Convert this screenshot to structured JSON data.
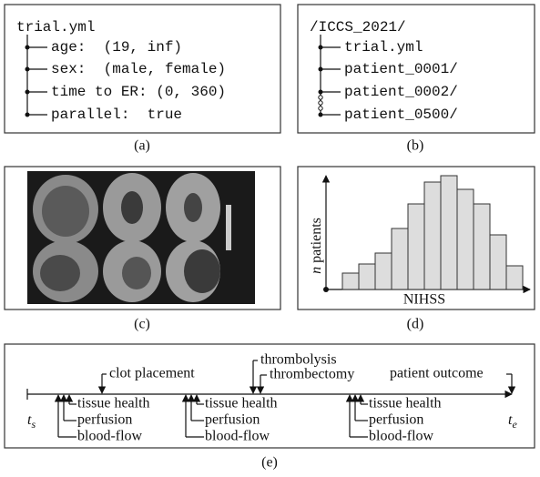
{
  "panel_a": {
    "root": "trial.yml",
    "items": [
      "age:  (19, inf)",
      "sex:  (male, female)",
      "time to ER: (0, 360)",
      "parallel:  true"
    ],
    "caption": "(a)"
  },
  "panel_b": {
    "root": "/ICCS_2021/",
    "items": [
      "trial.yml",
      "patient_0001/",
      "patient_0002/",
      "patient_0500/"
    ],
    "caption": "(b)"
  },
  "panel_c": {
    "caption": "(c)"
  },
  "panel_d": {
    "x_label": "NIHSS",
    "y_label_symbol": "n",
    "y_label": "patients",
    "values": [
      18,
      28,
      40,
      67,
      94,
      118,
      125,
      110,
      94,
      60,
      26
    ],
    "caption": "(d)"
  },
  "panel_e": {
    "start": {
      "symbol": "t",
      "subscript": "s"
    },
    "end": {
      "symbol": "t",
      "subscript": "e"
    },
    "clot": "clot placement",
    "thrombolysis": "thrombolysis",
    "thrombectomy": "thrombectomy",
    "outcome": "patient outcome",
    "imaging": [
      "tissue health",
      "perfusion",
      "blood-flow"
    ],
    "caption": "(e)"
  }
}
